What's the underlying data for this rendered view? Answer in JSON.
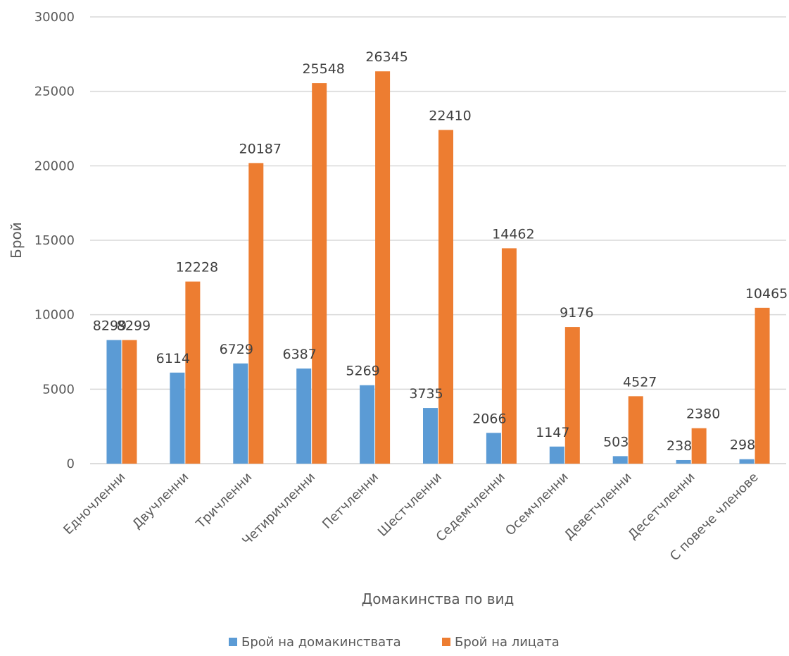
{
  "chart_data": {
    "type": "bar",
    "title": "",
    "xlabel": "Домакинства по вид",
    "ylabel": "Брой",
    "ylim": [
      0,
      30000
    ],
    "yticks": [
      0,
      5000,
      10000,
      15000,
      20000,
      25000,
      30000
    ],
    "grid": true,
    "legend_position": "bottom",
    "categories": [
      "Едночленни",
      "Двучленни",
      "Тричленни",
      "Четиричленни",
      "Петчленни",
      "Шестчленни",
      "Седемчленни",
      "Осемчленни",
      "Деветчленни",
      "Десетчленни",
      "С повече членове"
    ],
    "series": [
      {
        "name": "Брой на домакинствата",
        "color": "#5b9bd5",
        "values": [
          8299,
          6114,
          6729,
          6387,
          5269,
          3735,
          2066,
          1147,
          503,
          238,
          298
        ]
      },
      {
        "name": "Брой на лицата",
        "color": "#ed7d31",
        "values": [
          8299,
          12228,
          20187,
          25548,
          26345,
          22410,
          14462,
          9176,
          4527,
          2380,
          10465
        ]
      }
    ]
  }
}
